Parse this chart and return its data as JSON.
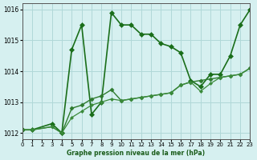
{
  "background_color": "#d6f0f0",
  "grid_color": "#b0d8d8",
  "line_color_dark": "#1a5c1a",
  "line_color_medium": "#2d8b2d",
  "xlabel": "Graphe pression niveau de la mer (hPa)",
  "xlim": [
    0,
    23
  ],
  "ylim": [
    1011.8,
    1016.2
  ],
  "yticks": [
    1012,
    1013,
    1014,
    1015,
    1016
  ],
  "xticks": [
    0,
    1,
    2,
    3,
    4,
    5,
    6,
    7,
    8,
    9,
    10,
    11,
    12,
    13,
    14,
    15,
    16,
    17,
    18,
    19,
    20,
    21,
    22,
    23
  ],
  "series": [
    {
      "x": [
        0,
        1,
        3,
        4,
        4,
        5,
        6,
        7,
        8,
        9,
        10,
        11,
        12,
        13,
        14,
        15,
        16,
        17,
        18,
        19,
        20,
        21,
        22,
        23
      ],
      "y": [
        1012.1,
        1012.1,
        1012.3,
        1012.0,
        1012.0,
        1014.7,
        1015.5,
        1012.6,
        1013.0,
        1015.9,
        1015.5,
        1015.5,
        1015.2,
        1015.2,
        1014.9,
        1014.8,
        1014.6,
        1013.7,
        1013.5,
        1013.9,
        1013.9,
        1014.5,
        1015.5,
        1016.0
      ],
      "color": "#1a6e1a",
      "linewidth": 1.2,
      "marker": "D",
      "markersize": 3
    },
    {
      "x": [
        0,
        1,
        3,
        4,
        5,
        6,
        7,
        8,
        9,
        10,
        11,
        12,
        13,
        14,
        15,
        16,
        17,
        18,
        19,
        20,
        21,
        22,
        23
      ],
      "y": [
        1012.1,
        1012.1,
        1012.2,
        1012.0,
        1012.8,
        1012.9,
        1013.1,
        1013.2,
        1013.4,
        1013.05,
        1013.1,
        1013.15,
        1013.2,
        1013.25,
        1013.3,
        1013.55,
        1013.65,
        1013.7,
        1013.75,
        1013.8,
        1013.85,
        1013.9,
        1014.1
      ],
      "color": "#2d7a2d",
      "linewidth": 1.0,
      "marker": "D",
      "markersize": 2.5
    },
    {
      "x": [
        0,
        1,
        3,
        4,
        5,
        6,
        7,
        8,
        9,
        10,
        11,
        12,
        13,
        14,
        15,
        16,
        17,
        18,
        19,
        20,
        21,
        22,
        23
      ],
      "y": [
        1012.1,
        1012.1,
        1012.2,
        1012.0,
        1012.5,
        1012.7,
        1012.9,
        1013.0,
        1013.1,
        1013.05,
        1013.1,
        1013.15,
        1013.2,
        1013.25,
        1013.3,
        1013.55,
        1013.65,
        1013.35,
        1013.6,
        1013.8,
        1013.85,
        1013.9,
        1014.1
      ],
      "color": "#3a8a3a",
      "linewidth": 0.9,
      "marker": "D",
      "markersize": 2
    }
  ]
}
